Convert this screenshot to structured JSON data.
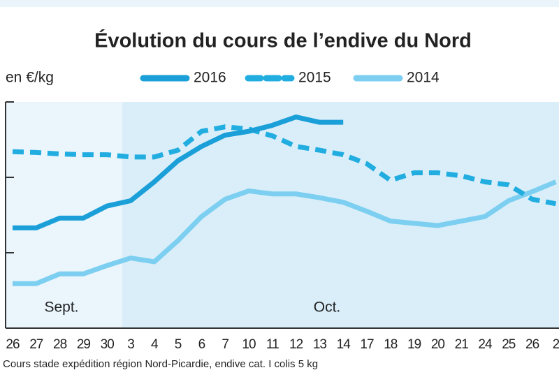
{
  "chart_data": {
    "type": "line",
    "title": "Évolution du cours de l’endive du Nord",
    "y_label": "en €/kg",
    "note": "Cours stade expédition région Nord-Picardie, endive cat. I colis 5 kg",
    "annotations": [
      "Sept.",
      "Oct."
    ],
    "categories": [
      "26",
      "27",
      "28",
      "29",
      "30",
      "3",
      "4",
      "5",
      "6",
      "7",
      "10",
      "11",
      "12",
      "13",
      "14",
      "17",
      "18",
      "19",
      "20",
      "21",
      "24",
      "25",
      "26",
      "2"
    ],
    "ylim": [
      0,
      3
    ],
    "yticks": [
      1,
      2,
      3
    ],
    "series": [
      {
        "name": "2016",
        "color": "#1a9fd8",
        "dashed": false,
        "values": [
          1.33,
          1.33,
          1.46,
          1.46,
          1.62,
          1.69,
          1.94,
          2.22,
          2.41,
          2.56,
          2.61,
          2.69,
          2.8,
          2.73,
          2.73,
          null,
          null,
          null,
          null,
          null,
          null,
          null,
          null,
          null
        ]
      },
      {
        "name": "2015",
        "color": "#22ade0",
        "dashed": true,
        "values": [
          2.34,
          2.33,
          2.31,
          2.3,
          2.3,
          2.27,
          2.27,
          2.36,
          2.61,
          2.67,
          2.64,
          2.55,
          2.41,
          2.36,
          2.3,
          2.18,
          1.96,
          2.06,
          2.06,
          2.02,
          1.94,
          1.9,
          1.71,
          1.65
        ]
      },
      {
        "name": "2014",
        "color": "#7ccff0",
        "dashed": false,
        "values": [
          0.59,
          0.59,
          0.72,
          0.72,
          0.83,
          0.93,
          0.88,
          1.16,
          1.48,
          1.71,
          1.82,
          1.78,
          1.78,
          1.73,
          1.67,
          1.55,
          1.42,
          1.39,
          1.36,
          1.42,
          1.48,
          1.69,
          1.81,
          1.94
        ]
      }
    ]
  }
}
